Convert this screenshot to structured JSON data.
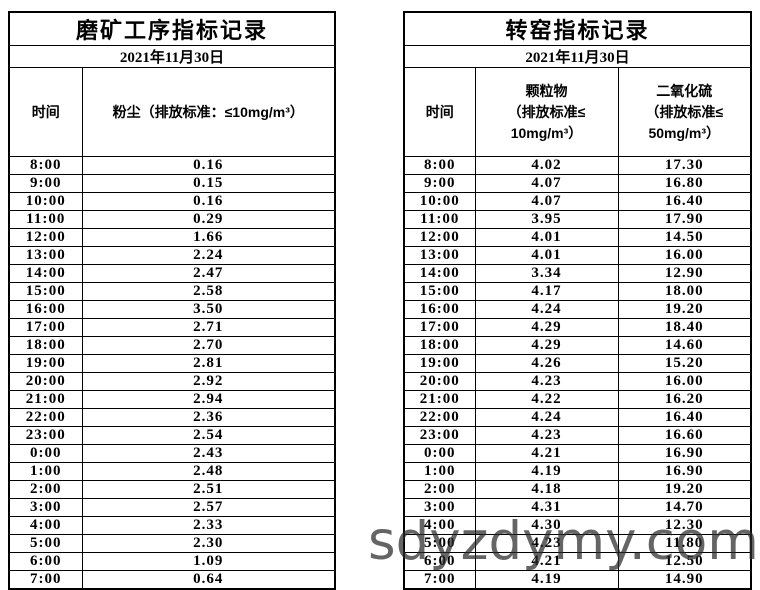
{
  "watermark": {
    "text": "sdyzdymy.com",
    "color": "#2a2a2a"
  },
  "left_table": {
    "title": "磨矿工序指标记录",
    "date": "2021年11月30日",
    "columns": {
      "time_label": "时间",
      "dust_label": "粉尘（排放标准：≤10mg/m³）"
    },
    "rows": [
      {
        "time": "8:00",
        "dust": "0.16"
      },
      {
        "time": "9:00",
        "dust": "0.15"
      },
      {
        "time": "10:00",
        "dust": "0.16"
      },
      {
        "time": "11:00",
        "dust": "0.29"
      },
      {
        "time": "12:00",
        "dust": "1.66"
      },
      {
        "time": "13:00",
        "dust": "2.24"
      },
      {
        "time": "14:00",
        "dust": "2.47"
      },
      {
        "time": "15:00",
        "dust": "2.58"
      },
      {
        "time": "16:00",
        "dust": "3.50"
      },
      {
        "time": "17:00",
        "dust": "2.71"
      },
      {
        "time": "18:00",
        "dust": "2.70"
      },
      {
        "time": "19:00",
        "dust": "2.81"
      },
      {
        "time": "20:00",
        "dust": "2.92"
      },
      {
        "time": "21:00",
        "dust": "2.94"
      },
      {
        "time": "22:00",
        "dust": "2.36"
      },
      {
        "time": "23:00",
        "dust": "2.54"
      },
      {
        "time": "0:00",
        "dust": "2.43"
      },
      {
        "time": "1:00",
        "dust": "2.48"
      },
      {
        "time": "2:00",
        "dust": "2.51"
      },
      {
        "time": "3:00",
        "dust": "2.57"
      },
      {
        "time": "4:00",
        "dust": "2.33"
      },
      {
        "time": "5:00",
        "dust": "2.30"
      },
      {
        "time": "6:00",
        "dust": "1.09"
      },
      {
        "time": "7:00",
        "dust": "0.64"
      }
    ]
  },
  "right_table": {
    "title": "转窑指标记录",
    "date": "2021年11月30日",
    "columns": {
      "time_label": "时间",
      "pm_lines": [
        "颗粒物",
        "（排放标准≤",
        "10mg/m³）"
      ],
      "so2_lines": [
        "二氧化硫",
        "（排放标准≤",
        "50mg/m³）"
      ]
    },
    "rows": [
      {
        "time": "8:00",
        "pm": "4.02",
        "so2": "17.30"
      },
      {
        "time": "9:00",
        "pm": "4.07",
        "so2": "16.80"
      },
      {
        "time": "10:00",
        "pm": "4.07",
        "so2": "16.40"
      },
      {
        "time": "11:00",
        "pm": "3.95",
        "so2": "17.90"
      },
      {
        "time": "12:00",
        "pm": "4.01",
        "so2": "14.50"
      },
      {
        "time": "13:00",
        "pm": "4.01",
        "so2": "16.00"
      },
      {
        "time": "14:00",
        "pm": "3.34",
        "so2": "12.90"
      },
      {
        "time": "15:00",
        "pm": "4.17",
        "so2": "18.00"
      },
      {
        "time": "16:00",
        "pm": "4.24",
        "so2": "19.20"
      },
      {
        "time": "17:00",
        "pm": "4.29",
        "so2": "18.40"
      },
      {
        "time": "18:00",
        "pm": "4.29",
        "so2": "14.60"
      },
      {
        "time": "19:00",
        "pm": "4.26",
        "so2": "15.20"
      },
      {
        "time": "20:00",
        "pm": "4.23",
        "so2": "16.00"
      },
      {
        "time": "21:00",
        "pm": "4.22",
        "so2": "16.20"
      },
      {
        "time": "22:00",
        "pm": "4.24",
        "so2": "16.40"
      },
      {
        "time": "23:00",
        "pm": "4.23",
        "so2": "16.60"
      },
      {
        "time": "0:00",
        "pm": "4.21",
        "so2": "16.90"
      },
      {
        "time": "1:00",
        "pm": "4.19",
        "so2": "16.90"
      },
      {
        "time": "2:00",
        "pm": "4.18",
        "so2": "19.20"
      },
      {
        "time": "3:00",
        "pm": "4.31",
        "so2": "14.70"
      },
      {
        "time": "4:00",
        "pm": "4.30",
        "so2": "12.30"
      },
      {
        "time": "5:00",
        "pm": "4.23",
        "so2": "11.80"
      },
      {
        "time": "6:00",
        "pm": "4.21",
        "so2": "12.50"
      },
      {
        "time": "7:00",
        "pm": "4.19",
        "so2": "14.90"
      }
    ]
  }
}
